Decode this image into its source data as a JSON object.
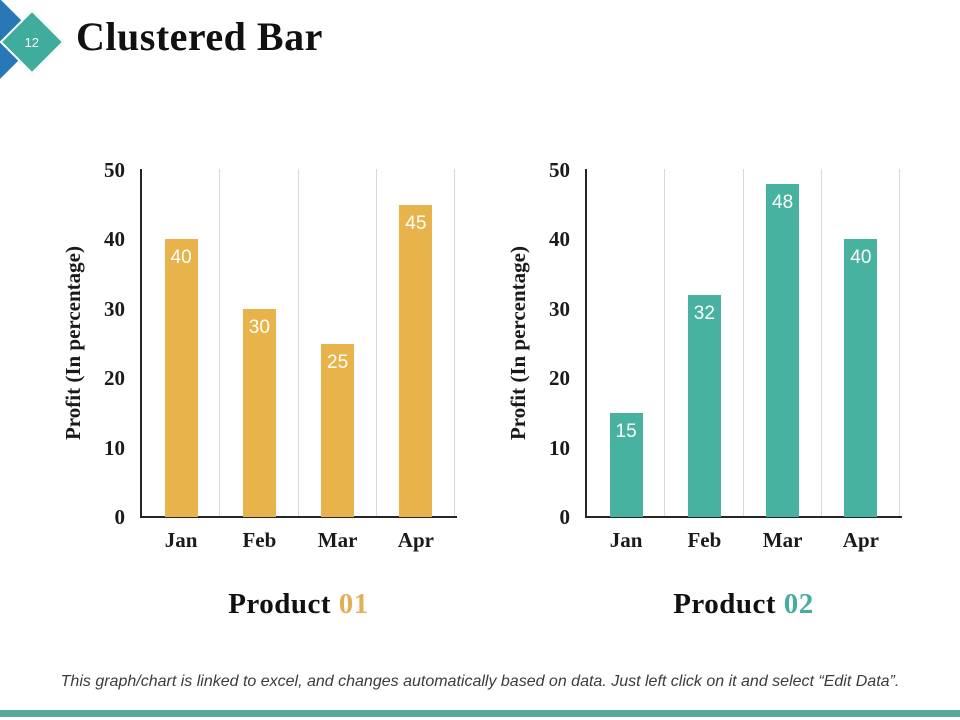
{
  "slide": {
    "page_number": "12",
    "title": "Clustered Bar",
    "footer_note": "This graph/chart is linked to excel, and changes automatically based on data. Just left click on it and select “Edit Data”."
  },
  "colors": {
    "diamond_blue": "#2878B8",
    "diamond_teal": "#3FAC9E",
    "axis": "#262626",
    "gridline": "#D9D9D9",
    "bottom_strip": "#57A89B",
    "footer_text": "#3C3C3C"
  },
  "chart_data": [
    {
      "type": "bar",
      "title": "Product 01",
      "title_prefix": "Product",
      "title_number": "01",
      "title_number_color": "#E2AF56",
      "categories": [
        "Jan",
        "Feb",
        "Mar",
        "Apr"
      ],
      "values": [
        40,
        30,
        25,
        45
      ],
      "bar_color": "#E9B34B",
      "data_label_color": "#FFFFFF",
      "ylabel": "Profit  (In percentage)",
      "yticks": [
        0,
        10,
        20,
        30,
        40,
        50
      ],
      "ylim": [
        0,
        50
      ],
      "grid": "vertical-category-separators",
      "legend": "none"
    },
    {
      "type": "bar",
      "title": "Product 02",
      "title_prefix": "Product",
      "title_number": "02",
      "title_number_color": "#47AC9D",
      "categories": [
        "Jan",
        "Feb",
        "Mar",
        "Apr"
      ],
      "values": [
        15,
        32,
        48,
        40
      ],
      "bar_color": "#47B2A0",
      "data_label_color": "#FFFFFF",
      "ylabel": "Profit  (In percentage)",
      "yticks": [
        0,
        10,
        20,
        30,
        40,
        50
      ],
      "ylim": [
        0,
        50
      ],
      "grid": "vertical-category-separators",
      "legend": "none"
    }
  ]
}
